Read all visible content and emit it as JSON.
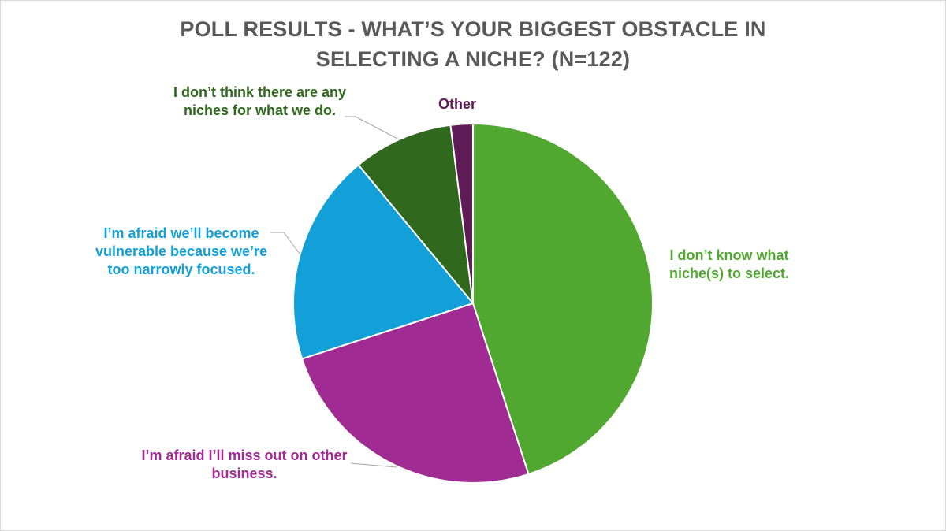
{
  "chart_data": {
    "type": "pie",
    "title": "POLL RESULTS - WHAT’S YOUR BIGGEST OBSTACLE IN SELECTING A NICHE? (N=122)",
    "slices": [
      {
        "label": "I don’t know what niche(s) to select.",
        "value": 45,
        "color": "#50a830",
        "text_color": "#50a830"
      },
      {
        "label": "I’m afraid I’ll miss out on other business.",
        "value": 25,
        "color": "#9f2b93",
        "text_color": "#9f2b93"
      },
      {
        "label": "I’m afraid we’ll become vulnerable because we’re too narrowly focused.",
        "value": 19,
        "color": "#13a0d8",
        "text_color": "#13a0d8"
      },
      {
        "label": "I don’t think there are any niches for what we do.",
        "value": 9,
        "color": "#30681e",
        "text_color": "#30681e"
      },
      {
        "label": "Other",
        "value": 2,
        "color": "#5e1b55",
        "text_color": "#5e1b55"
      }
    ],
    "legend": "none"
  }
}
